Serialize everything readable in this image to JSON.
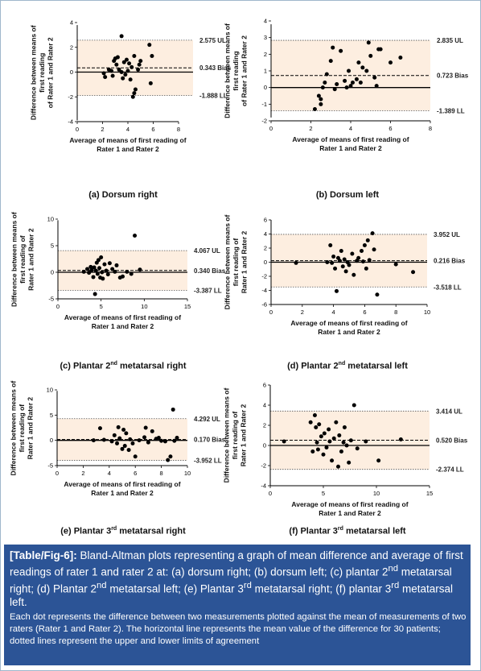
{
  "chart_data": [
    {
      "type": "scatter",
      "panel_label": "(a) Dorsum right",
      "xlabel": "Average of means of  first reading of\nRater 1 and Rater 2",
      "ylabel": "Difference between means of\nfirst reading\nof Rater 1 and Rater 2",
      "xlim": [
        0,
        8
      ],
      "ylim": [
        -4,
        4
      ],
      "xticks": [
        0,
        2,
        4,
        6,
        8
      ],
      "yticks": [
        -4,
        -2,
        0,
        2,
        4
      ],
      "bias": 0.343,
      "ul": 2.575,
      "ll": -1.888,
      "labels": {
        "ul": "2.575 UL",
        "bias": "0.343 Bias",
        "ll": "-1.888 LL"
      },
      "points": [
        [
          2.1,
          -0.1
        ],
        [
          2.2,
          -0.4
        ],
        [
          2.5,
          0.2
        ],
        [
          2.7,
          0.1
        ],
        [
          2.8,
          -0.3
        ],
        [
          2.9,
          0.9
        ],
        [
          3.0,
          1.1
        ],
        [
          3.1,
          0.6
        ],
        [
          3.2,
          1.2
        ],
        [
          3.3,
          0.2
        ],
        [
          3.5,
          2.9
        ],
        [
          3.5,
          0.0
        ],
        [
          3.6,
          -0.5
        ],
        [
          3.7,
          0.8
        ],
        [
          3.8,
          -0.2
        ],
        [
          3.9,
          1.0
        ],
        [
          4.0,
          0.1
        ],
        [
          4.1,
          0.7
        ],
        [
          4.2,
          -0.6
        ],
        [
          4.3,
          0.4
        ],
        [
          4.4,
          -2.0
        ],
        [
          4.5,
          -1.7
        ],
        [
          4.5,
          1.3
        ],
        [
          4.6,
          -1.4
        ],
        [
          4.8,
          0.2
        ],
        [
          4.9,
          0.6
        ],
        [
          5.0,
          0.9
        ],
        [
          5.7,
          2.2
        ],
        [
          5.8,
          -0.9
        ],
        [
          5.9,
          1.3
        ]
      ]
    },
    {
      "type": "scatter",
      "panel_label": "(b) Dorsum left",
      "xlabel": "Average of means of  first reading of\nRater 1 and Rater 2",
      "ylabel": "Difference between means of\nfirst reading\nof Rater 1 and Rater 2",
      "xlim": [
        0,
        8
      ],
      "ylim": [
        -2,
        4
      ],
      "xticks": [
        0,
        2,
        4,
        6,
        8
      ],
      "yticks": [
        -2,
        -1,
        0,
        1,
        2,
        3,
        4
      ],
      "bias": 0.723,
      "ul": 2.835,
      "ll": -1.389,
      "labels": {
        "ul": "2.835 UL",
        "bias": "0.723 Bias",
        "ll": "-1.389 LL"
      },
      "points": [
        [
          2.2,
          -1.3
        ],
        [
          2.4,
          -0.5
        ],
        [
          2.5,
          -0.7
        ],
        [
          2.5,
          -1.0
        ],
        [
          2.6,
          0.0
        ],
        [
          2.7,
          0.3
        ],
        [
          2.8,
          0.8
        ],
        [
          3.0,
          1.6
        ],
        [
          3.1,
          2.4
        ],
        [
          3.2,
          -0.1
        ],
        [
          3.3,
          0.2
        ],
        [
          3.5,
          2.2
        ],
        [
          3.7,
          0.4
        ],
        [
          3.8,
          0.0
        ],
        [
          3.9,
          1.0
        ],
        [
          4.0,
          0.1
        ],
        [
          4.1,
          0.3
        ],
        [
          4.3,
          0.5
        ],
        [
          4.4,
          1.5
        ],
        [
          4.5,
          0.3
        ],
        [
          4.6,
          1.2
        ],
        [
          4.8,
          1.0
        ],
        [
          4.9,
          2.7
        ],
        [
          5.0,
          1.9
        ],
        [
          5.2,
          0.6
        ],
        [
          5.3,
          0.1
        ],
        [
          5.4,
          2.3
        ],
        [
          5.5,
          2.3
        ],
        [
          6.0,
          1.5
        ],
        [
          6.5,
          1.8
        ]
      ]
    },
    {
      "type": "scatter",
      "panel_label": "(c) Plantar 2nd metatarsal right",
      "xlabel": "Average of means of  first reading of\nRater 1 and Rater 2",
      "ylabel": "Difference between means of\nfirst reading of\nRater 1 and Rater 2",
      "xlim": [
        0,
        15
      ],
      "ylim": [
        -5,
        10
      ],
      "xticks": [
        0,
        5,
        10,
        15
      ],
      "yticks": [
        -5,
        0,
        5,
        10
      ],
      "bias": 0.34,
      "ul": 4.067,
      "ll": -3.387,
      "labels": {
        "ul": "4.067 UL",
        "bias": "0.340 Bias",
        "ll": "-3.387 LL"
      },
      "points": [
        [
          3.0,
          0.1
        ],
        [
          3.4,
          0.6
        ],
        [
          3.6,
          -0.1
        ],
        [
          3.8,
          1.0
        ],
        [
          3.9,
          0.4
        ],
        [
          4.1,
          -0.9
        ],
        [
          4.2,
          0.9
        ],
        [
          4.3,
          -4.1
        ],
        [
          4.4,
          0.3
        ],
        [
          4.5,
          1.8
        ],
        [
          4.6,
          -0.3
        ],
        [
          4.7,
          2.3
        ],
        [
          4.8,
          0.8
        ],
        [
          4.9,
          -1.0
        ],
        [
          5.0,
          2.8
        ],
        [
          5.1,
          0.0
        ],
        [
          5.2,
          -1.2
        ],
        [
          5.4,
          1.5
        ],
        [
          5.6,
          0.3
        ],
        [
          5.8,
          -0.4
        ],
        [
          6.0,
          1.7
        ],
        [
          6.3,
          0.6
        ],
        [
          6.6,
          0.1
        ],
        [
          6.8,
          1.3
        ],
        [
          7.2,
          -1.0
        ],
        [
          7.5,
          -0.8
        ],
        [
          8.0,
          0.1
        ],
        [
          8.5,
          -0.3
        ],
        [
          8.9,
          6.9
        ],
        [
          9.5,
          0.5
        ]
      ]
    },
    {
      "type": "scatter",
      "panel_label": "(d) Plantar 2nd metatarsal left",
      "xlabel": "Average of means of  first reading of\nRater 1 and Rater 2",
      "ylabel": "Difference between means of\nfirst reading of\nRater 1 and Rater 2",
      "xlim": [
        0,
        10
      ],
      "ylim": [
        -6,
        6
      ],
      "xticks": [
        0,
        2,
        4,
        6,
        8,
        10
      ],
      "yticks": [
        -6,
        -4,
        -2,
        0,
        2,
        4,
        6
      ],
      "bias": 0.216,
      "ul": 3.952,
      "ll": -3.518,
      "labels": {
        "ul": "3.952 UL",
        "bias": "0.216 Bias",
        "ll": "-3.518 LL"
      },
      "points": [
        [
          1.6,
          -0.1
        ],
        [
          3.6,
          0.0
        ],
        [
          3.8,
          2.4
        ],
        [
          3.9,
          -0.1
        ],
        [
          4.0,
          0.8
        ],
        [
          4.1,
          -0.9
        ],
        [
          4.2,
          -4.1
        ],
        [
          4.3,
          0.6
        ],
        [
          4.4,
          0.2
        ],
        [
          4.5,
          1.6
        ],
        [
          4.6,
          -0.6
        ],
        [
          4.7,
          0.4
        ],
        [
          4.8,
          -1.3
        ],
        [
          4.9,
          0.0
        ],
        [
          5.0,
          -0.4
        ],
        [
          5.2,
          1.2
        ],
        [
          5.3,
          -1.8
        ],
        [
          5.5,
          0.2
        ],
        [
          5.6,
          0.6
        ],
        [
          5.8,
          1.6
        ],
        [
          5.9,
          0.1
        ],
        [
          6.0,
          2.4
        ],
        [
          6.1,
          -0.9
        ],
        [
          6.2,
          3.1
        ],
        [
          6.3,
          0.3
        ],
        [
          6.5,
          4.1
        ],
        [
          6.6,
          1.8
        ],
        [
          6.8,
          -4.6
        ],
        [
          8.0,
          -0.3
        ],
        [
          9.1,
          -1.4
        ]
      ]
    },
    {
      "type": "scatter",
      "panel_label": "(e) Plantar 3rd metatarsal right",
      "xlabel": "Average of means of  first reading of\nRater 1 and Rater 2",
      "ylabel": "Difference between means of\nfirst reading of\nRater 1 and Rater 2",
      "xlim": [
        0,
        10
      ],
      "ylim": [
        -5,
        10
      ],
      "xticks": [
        0,
        2,
        4,
        6,
        8,
        10
      ],
      "yticks": [
        -5,
        0,
        5,
        10
      ],
      "bias": 0.17,
      "ul": 4.292,
      "ll": -3.952,
      "labels": {
        "ul": "4.292 UL",
        "bias": "0.170 Bias",
        "ll": "-3.952 LL"
      },
      "points": [
        [
          2.8,
          0.0
        ],
        [
          3.3,
          2.4
        ],
        [
          3.6,
          0.1
        ],
        [
          4.2,
          -0.2
        ],
        [
          4.4,
          1.0
        ],
        [
          4.6,
          -0.6
        ],
        [
          4.7,
          2.6
        ],
        [
          4.8,
          0.4
        ],
        [
          5.0,
          -1.7
        ],
        [
          5.1,
          2.1
        ],
        [
          5.2,
          -1.1
        ],
        [
          5.3,
          1.4
        ],
        [
          5.5,
          -1.9
        ],
        [
          5.6,
          0.2
        ],
        [
          5.8,
          -0.6
        ],
        [
          6.0,
          -3.2
        ],
        [
          6.3,
          0.0
        ],
        [
          6.7,
          0.6
        ],
        [
          6.8,
          2.5
        ],
        [
          7.0,
          -0.4
        ],
        [
          7.3,
          1.8
        ],
        [
          7.6,
          0.3
        ],
        [
          7.8,
          0.5
        ],
        [
          8.0,
          -0.1
        ],
        [
          8.3,
          -0.2
        ],
        [
          8.5,
          -3.9
        ],
        [
          8.7,
          -3.2
        ],
        [
          8.9,
          6.1
        ],
        [
          9.0,
          -0.1
        ],
        [
          9.2,
          0.5
        ]
      ]
    },
    {
      "type": "scatter",
      "panel_label": "(f) Plantar 3rd metatarsal left",
      "xlabel": "Average of means of  first reading of\nRater 1 and Rater 2",
      "ylabel": "Difference between means of\nfirst reading of\nRater 1 and Rater 2",
      "xlim": [
        0,
        15
      ],
      "ylim": [
        -4,
        6
      ],
      "xticks": [
        0,
        5,
        10,
        15
      ],
      "yticks": [
        -4,
        -2,
        0,
        2,
        4,
        6
      ],
      "bias": 0.52,
      "ul": 3.414,
      "ll": -2.374,
      "labels": {
        "ul": "3.414 UL",
        "bias": "0.520 Bias",
        "ll": "-2.374 LL"
      },
      "points": [
        [
          1.3,
          0.4
        ],
        [
          3.8,
          2.3
        ],
        [
          4.0,
          -0.6
        ],
        [
          4.2,
          3.0
        ],
        [
          4.3,
          1.8
        ],
        [
          4.4,
          0.3
        ],
        [
          4.5,
          -0.4
        ],
        [
          4.6,
          2.1
        ],
        [
          4.8,
          0.9
        ],
        [
          5.0,
          -0.9
        ],
        [
          5.1,
          1.2
        ],
        [
          5.3,
          -0.2
        ],
        [
          5.5,
          1.6
        ],
        [
          5.6,
          0.4
        ],
        [
          5.8,
          -1.5
        ],
        [
          6.0,
          0.7
        ],
        [
          6.2,
          2.3
        ],
        [
          6.4,
          -2.1
        ],
        [
          6.5,
          1.0
        ],
        [
          6.7,
          -0.6
        ],
        [
          6.9,
          0.3
        ],
        [
          7.0,
          1.8
        ],
        [
          7.2,
          0.0
        ],
        [
          7.4,
          -1.7
        ],
        [
          7.6,
          0.5
        ],
        [
          7.9,
          4.0
        ],
        [
          8.2,
          -0.3
        ],
        [
          9.0,
          0.4
        ],
        [
          10.2,
          -1.5
        ],
        [
          12.3,
          0.6
        ]
      ]
    }
  ],
  "caption": {
    "table_ref": "[Table/Fig-6]:",
    "title_parts": [
      " Bland-Altman plots representing a graph of mean difference and average of first readings of rater 1 and rater 2 at: (a) dorsum right; (b) dorsum left; (c) plantar 2",
      "nd",
      " metatarsal right; (d) Plantar 2",
      "nd",
      " metatarsal left; (e) Plantar 3",
      "rd",
      " metatarsal right; (f) plantar 3",
      "rd",
      " metatarsal left."
    ],
    "note": "Each dot represents the difference between two measurements plotted against the mean of measurements of two raters (Rater 1 and Rater 2). The horizontal line represents the mean value of the difference for 30 patients; dotted lines represent the upper and lower limits of agreement"
  }
}
